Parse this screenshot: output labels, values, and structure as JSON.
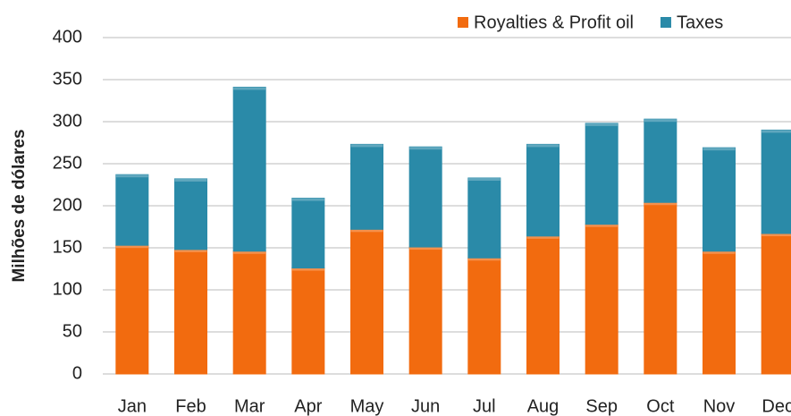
{
  "chart_data": {
    "type": "stacked_bar",
    "y_label": "Milhões de dólares",
    "categories": [
      "Jan",
      "Feb",
      "Mar",
      "Apr",
      "May",
      "Jun",
      "Jul",
      "Aug",
      "Sep",
      "Oct",
      "Nov",
      "Dec"
    ],
    "series": [
      {
        "name": "Royalties & Profit oil",
        "color": "#f26b0f",
        "values": [
          153,
          148,
          146,
          126,
          172,
          151,
          138,
          164,
          178,
          204,
          146,
          167
        ]
      },
      {
        "name": "Taxes",
        "color": "#2a8aa8",
        "values": [
          84,
          84,
          195,
          83,
          101,
          119,
          95,
          109,
          120,
          99,
          123,
          123
        ]
      }
    ],
    "ylim": [
      0,
      400
    ],
    "yticks": [
      0,
      50,
      100,
      150,
      200,
      250,
      300,
      350,
      400
    ],
    "grid": true,
    "legend": "top-right"
  }
}
